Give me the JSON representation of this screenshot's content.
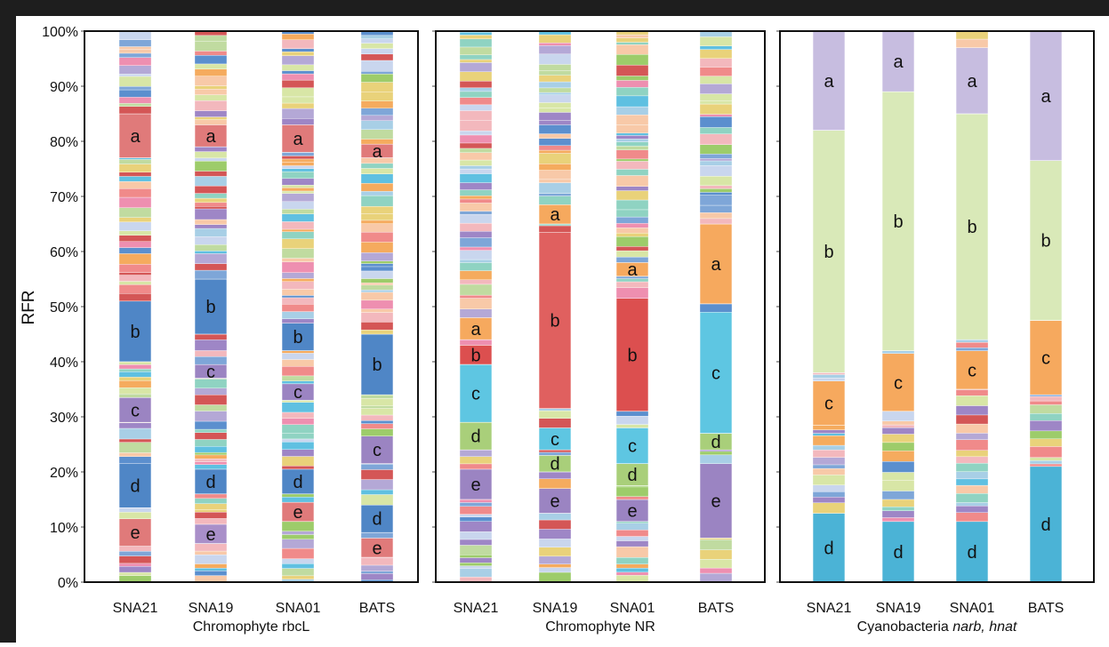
{
  "chart_data": {
    "type": "bar",
    "stacked": true,
    "ylabel": "RFR",
    "ylim": [
      0,
      100
    ],
    "yticks": [
      "0%",
      "10%",
      "20%",
      "30%",
      "40%",
      "50%",
      "60%",
      "70%",
      "80%",
      "90%",
      "100%"
    ],
    "panels": [
      {
        "title": "Chromophyte rbcL",
        "categories": [
          "SNA21",
          "SNA19",
          "SNA01",
          "BATS"
        ],
        "bars": [
          {
            "category": "SNA21",
            "labeled": [
              {
                "label": "e",
                "start": 6.5,
                "end": 11.5,
                "color": "#e07a7a"
              },
              {
                "label": "d",
                "start": 13.5,
                "end": 21.5,
                "color": "#4f86c6"
              },
              {
                "label": "c",
                "start": 29,
                "end": 33.5,
                "color": "#9b84c2"
              },
              {
                "label": "b",
                "start": 40,
                "end": 51,
                "color": "#4f86c6"
              },
              {
                "label": "a",
                "start": 77,
                "end": 85,
                "color": "#e07a7a"
              }
            ]
          },
          {
            "category": "SNA19",
            "labeled": [
              {
                "label": "e",
                "start": 7,
                "end": 10.5,
                "color": "#a98fc9"
              },
              {
                "label": "d",
                "start": 16,
                "end": 20.5,
                "color": "#4f86c6"
              },
              {
                "label": "c",
                "start": 37,
                "end": 39.5,
                "color": "#9b84c2"
              },
              {
                "label": "b",
                "start": 45,
                "end": 55,
                "color": "#4f86c6"
              },
              {
                "label": "a",
                "start": 79,
                "end": 83,
                "color": "#e07a7a"
              }
            ]
          },
          {
            "category": "SNA01",
            "labeled": [
              {
                "label": "e",
                "start": 11,
                "end": 14.5,
                "color": "#e07a7a"
              },
              {
                "label": "d",
                "start": 16,
                "end": 20.5,
                "color": "#4f86c6"
              },
              {
                "label": "c",
                "start": 33,
                "end": 36,
                "color": "#9b84c2"
              },
              {
                "label": "b",
                "start": 42,
                "end": 47,
                "color": "#4f86c6"
              },
              {
                "label": "a",
                "start": 78,
                "end": 83,
                "color": "#e07a7a"
              }
            ]
          },
          {
            "category": "BATS",
            "labeled": [
              {
                "label": "e",
                "start": 4.5,
                "end": 8,
                "color": "#e07a7a"
              },
              {
                "label": "d",
                "start": 9,
                "end": 14,
                "color": "#4f86c6"
              },
              {
                "label": "c",
                "start": 21.5,
                "end": 26.5,
                "color": "#9b84c2"
              },
              {
                "label": "b",
                "start": 34,
                "end": 45,
                "color": "#4f86c6"
              },
              {
                "label": "a",
                "start": 77,
                "end": 79.5,
                "color": "#e07a7a"
              }
            ]
          }
        ],
        "labels": [
          "SNA21",
          "SNA19",
          "SNA01",
          "BATS",
          "Chromophyte rbcL"
        ]
      },
      {
        "title": "Chromophyte NR",
        "categories": [
          "SNA21",
          "SNA19",
          "SNA01",
          "BATS"
        ],
        "bars": [
          {
            "category": "SNA21",
            "labeled": [
              {
                "label": "e",
                "start": 15,
                "end": 20.5,
                "color": "#9b84c2"
              },
              {
                "label": "d",
                "start": 24,
                "end": 29,
                "color": "#a9cf7a"
              },
              {
                "label": "c",
                "start": 29,
                "end": 39.5,
                "color": "#5ec6e2"
              },
              {
                "label": "b",
                "start": 39.5,
                "end": 43,
                "color": "#dc4f4f"
              },
              {
                "label": "a",
                "start": 44,
                "end": 48,
                "color": "#f6a95e"
              }
            ]
          },
          {
            "category": "SNA19",
            "labeled": [
              {
                "label": "e",
                "start": 12.5,
                "end": 17,
                "color": "#9b84c2"
              },
              {
                "label": "d",
                "start": 20,
                "end": 23,
                "color": "#a9cf7a"
              },
              {
                "label": "c",
                "start": 24,
                "end": 28,
                "color": "#5ec6e2"
              },
              {
                "label": "b",
                "start": 31.5,
                "end": 63.5,
                "color": "#e0605f"
              },
              {
                "label": "a",
                "start": 65,
                "end": 68.5,
                "color": "#f6a95e"
              }
            ]
          },
          {
            "category": "SNA01",
            "labeled": [
              {
                "label": "e",
                "start": 11,
                "end": 15,
                "color": "#9b84c2"
              },
              {
                "label": "d",
                "start": 17.5,
                "end": 21.5,
                "color": "#a9cf7a"
              },
              {
                "label": "c",
                "start": 21.5,
                "end": 28,
                "color": "#5ec6e2"
              },
              {
                "label": "b",
                "start": 31,
                "end": 51.5,
                "color": "#dc4f4f"
              },
              {
                "label": "a",
                "start": 55.5,
                "end": 58,
                "color": "#f6a95e"
              }
            ]
          },
          {
            "category": "BATS",
            "labeled": [
              {
                "label": "e",
                "start": 8,
                "end": 21.5,
                "color": "#9b84c2"
              },
              {
                "label": "d",
                "start": 24,
                "end": 27,
                "color": "#a9cf7a"
              },
              {
                "label": "c",
                "start": 27,
                "end": 49,
                "color": "#5ec6e2"
              },
              {
                "label": "a",
                "start": 50.5,
                "end": 65,
                "color": "#f6a95e"
              }
            ]
          }
        ],
        "labels": [
          "SNA21",
          "SNA19",
          "SNA01",
          "BATS",
          "Chromophyte NR"
        ]
      },
      {
        "title": "Cyanobacteria narb, hnat",
        "title_plain": "Cyanobacteria ",
        "title_italic": "narb, hnat",
        "categories": [
          "SNA21",
          "SNA19",
          "SNA01",
          "BATS"
        ],
        "bars": [
          {
            "category": "SNA21",
            "labeled": [
              {
                "label": "d",
                "start": 0,
                "end": 12.5,
                "color": "#4bb3d6"
              },
              {
                "label": "c",
                "start": 28.5,
                "end": 36.5,
                "color": "#f6a95e"
              },
              {
                "label": "b",
                "start": 38,
                "end": 82,
                "color": "#d9e9b8"
              },
              {
                "label": "a",
                "start": 82,
                "end": 100,
                "color": "#c7bde0"
              }
            ]
          },
          {
            "category": "SNA19",
            "labeled": [
              {
                "label": "d",
                "start": 0,
                "end": 11,
                "color": "#4bb3d6"
              },
              {
                "label": "c",
                "start": 31,
                "end": 41.5,
                "color": "#f6a95e"
              },
              {
                "label": "b",
                "start": 42,
                "end": 89,
                "color": "#d9e9b8"
              },
              {
                "label": "a",
                "start": 89,
                "end": 100,
                "color": "#c7bde0"
              }
            ]
          },
          {
            "category": "SNA01",
            "labeled": [
              {
                "label": "d",
                "start": 0,
                "end": 11,
                "color": "#4bb3d6"
              },
              {
                "label": "c",
                "start": 35,
                "end": 42,
                "color": "#f6a95e"
              },
              {
                "label": "b",
                "start": 44,
                "end": 85,
                "color": "#d9e9b8"
              },
              {
                "label": "a",
                "start": 85,
                "end": 97,
                "color": "#c7bde0"
              }
            ]
          },
          {
            "category": "BATS",
            "labeled": [
              {
                "label": "d",
                "start": 0,
                "end": 21,
                "color": "#4bb3d6"
              },
              {
                "label": "c",
                "start": 34,
                "end": 47.5,
                "color": "#f6a95e"
              },
              {
                "label": "b",
                "start": 47.5,
                "end": 76.5,
                "color": "#d9e9b8"
              },
              {
                "label": "a",
                "start": 76.5,
                "end": 100,
                "color": "#c7bde0"
              }
            ]
          }
        ],
        "labels": [
          "SNA21",
          "SNA19",
          "SNA01",
          "BATS",
          "Cyanobacteria"
        ]
      }
    ],
    "grid": false,
    "legend": "none"
  },
  "palette": [
    "#f8c9a8",
    "#f3b8bd",
    "#c9d6ee",
    "#a8cfe6",
    "#d8e6a6",
    "#f5ab5e",
    "#5fc0e1",
    "#d45656",
    "#5b8fce",
    "#9e86c6",
    "#9dcc6a",
    "#f08a8a",
    "#b4a8d6",
    "#e9d27a",
    "#7ea6d8",
    "#ee8fb0",
    "#8fd3c2",
    "#c0dba0"
  ]
}
